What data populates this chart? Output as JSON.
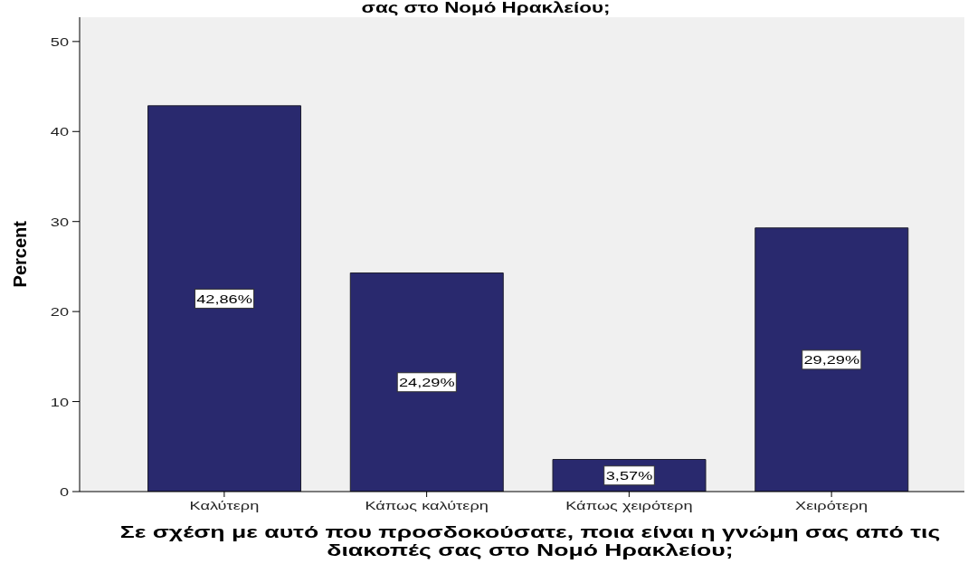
{
  "chart_data": {
    "type": "bar",
    "title": "σας στο Νομό Ηρακλείου;",
    "xlabel": "Σε σχέση με αυτό που προσδοκούσατε, ποια είναι η γνώμη σας από τις διακοπές σας στο Νομό Ηρακλείου;",
    "ylabel": "Percent",
    "categories": [
      "Καλύτερη",
      "Κάπως καλύτερη",
      "Κάπως χειρότερη",
      "Χειρότερη"
    ],
    "values": [
      42.86,
      24.29,
      3.57,
      29.29
    ],
    "value_labels": [
      "42,86%",
      "24,29%",
      "3,57%",
      "29,29%"
    ],
    "color": "#29296e",
    "ylim": [
      0,
      52.7
    ],
    "yticks": [
      0,
      10,
      20,
      30,
      40,
      50
    ]
  }
}
